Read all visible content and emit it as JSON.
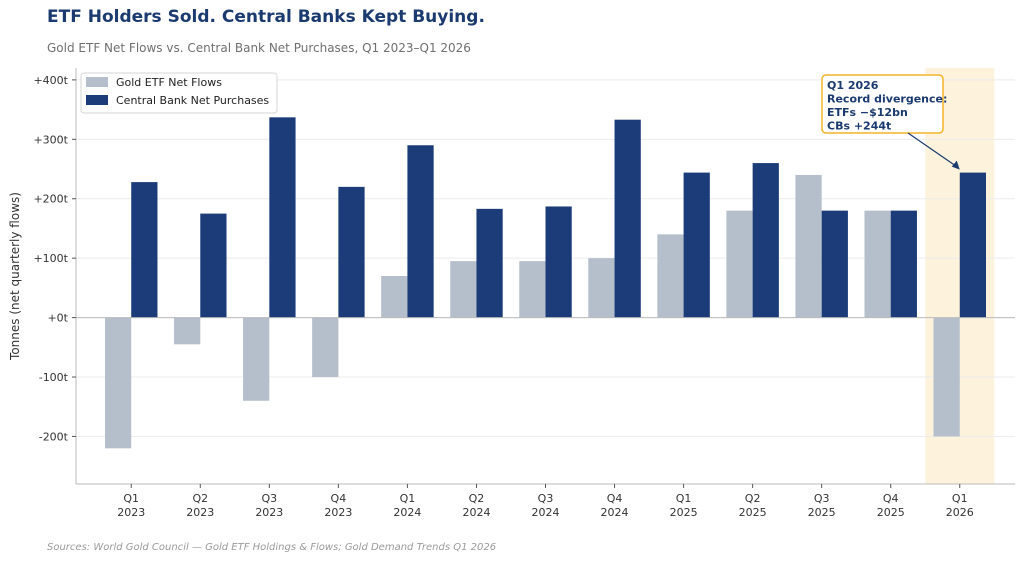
{
  "title": "ETF Holders Sold. Central Banks Kept Buying.",
  "subtitle": "Gold ETF Net Flows vs. Central Bank Net Purchases, Q1 2023–Q1 2026",
  "source": "Sources: World Gold Council — Gold ETF Holdings & Flows; Gold Demand Trends Q1 2026",
  "chart_data": {
    "type": "bar",
    "ylabel": "Tonnes (net quarterly flows)",
    "ylim": [
      -280,
      420
    ],
    "yticks": [
      -200,
      -100,
      0,
      100,
      200,
      300,
      400
    ],
    "ytick_labels": [
      "-200t",
      "-100t",
      "+0t",
      "+100t",
      "+200t",
      "+300t",
      "+400t"
    ],
    "categories": [
      {
        "quarter": "Q1",
        "year": "2023"
      },
      {
        "quarter": "Q2",
        "year": "2023"
      },
      {
        "quarter": "Q3",
        "year": "2023"
      },
      {
        "quarter": "Q4",
        "year": "2023"
      },
      {
        "quarter": "Q1",
        "year": "2024"
      },
      {
        "quarter": "Q2",
        "year": "2024"
      },
      {
        "quarter": "Q3",
        "year": "2024"
      },
      {
        "quarter": "Q4",
        "year": "2024"
      },
      {
        "quarter": "Q1",
        "year": "2025"
      },
      {
        "quarter": "Q2",
        "year": "2025"
      },
      {
        "quarter": "Q3",
        "year": "2025"
      },
      {
        "quarter": "Q4",
        "year": "2025"
      },
      {
        "quarter": "Q1",
        "year": "2026"
      }
    ],
    "series": [
      {
        "name": "Gold ETF Net Flows",
        "color": "#b5bfcb",
        "values": [
          -220,
          -45,
          -140,
          -100,
          70,
          95,
          95,
          100,
          140,
          180,
          240,
          180,
          -200
        ]
      },
      {
        "name": "Central Bank Net Purchases",
        "color": "#1b3c78",
        "values": [
          228,
          175,
          337,
          220,
          290,
          183,
          187,
          333,
          244,
          260,
          180,
          180,
          244
        ]
      }
    ],
    "grid": true,
    "legend": "top-left",
    "highlight": {
      "category_index": 12,
      "color": "#fdf2dc"
    },
    "annotation": {
      "lines": [
        "Q1 2026",
        "Record divergence:",
        "ETFs −$12bn",
        "CBs +244t"
      ],
      "target_category_index": 12,
      "target_value": 244,
      "border_color": "#f0b429"
    }
  }
}
